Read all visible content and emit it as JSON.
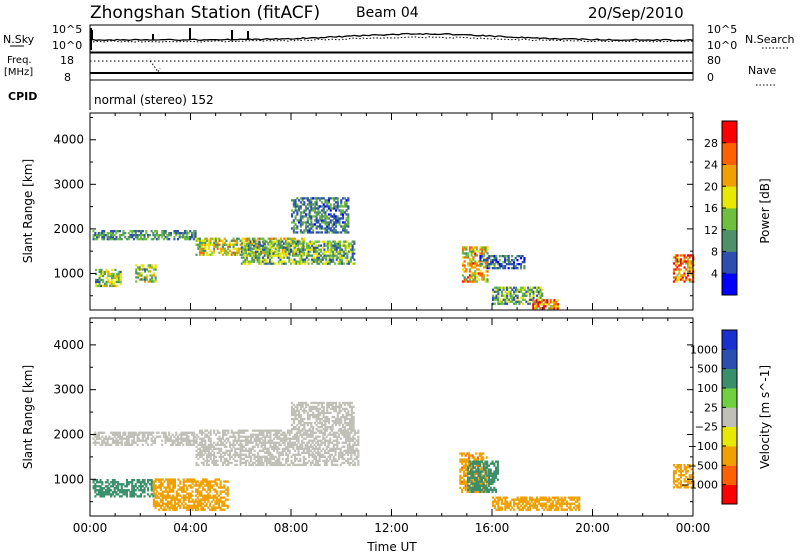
{
  "header": {
    "title": "Zhongshan Station (fitACF)",
    "beam": "Beam 04",
    "date": "20/Sep/2010"
  },
  "strip": {
    "nsky_label": "N.Sky",
    "nsky_ticks": [
      "10^5",
      "10^0"
    ],
    "nsearch_label": "N.Search",
    "nsearch_ticks": [
      "10^5",
      "10^0"
    ],
    "freq_label": "Freq.",
    "freq_unit": "[MHz]",
    "freq_ticks": [
      "18",
      "8"
    ],
    "nave_label": "Nave",
    "nave_ticks": [
      "80",
      "0"
    ],
    "cpid_label": "CPID",
    "cpid_text": "normal (stereo) 152"
  },
  "colors": {
    "power_scale": [
      "#0000ff",
      "#2c4fb0",
      "#4f8f6a",
      "#6fbf3f",
      "#e8e800",
      "#f0a000",
      "#ff6000",
      "#ff0000"
    ],
    "velocity_scale": [
      "#ff0000",
      "#ff6000",
      "#f0a000",
      "#e8e800",
      "#c0c0b8",
      "#6fd040",
      "#3a8f6a",
      "#2a4fb0",
      "#1830d0"
    ]
  },
  "chart_data": [
    {
      "type": "heatmap",
      "panel": "power",
      "xlabel": "",
      "ylabel": "Slant Range [km]",
      "xlim": [
        0,
        24
      ],
      "ylim": [
        180,
        4600
      ],
      "yticks": [
        "1000",
        "2000",
        "3000",
        "4000"
      ],
      "colorbar_label": "Power [dB]",
      "colorbar_ticks": [
        "4",
        "8",
        "12",
        "16",
        "20",
        "24",
        "28"
      ],
      "colorbar_range": [
        0,
        32
      ],
      "echo_regions": [
        {
          "x": [
            0.1,
            4.2
          ],
          "y": [
            1750,
            1950
          ],
          "value": 10
        },
        {
          "x": [
            0.2,
            1.2
          ],
          "y": [
            700,
            1100
          ],
          "value": 14
        },
        {
          "x": [
            1.8,
            2.6
          ],
          "y": [
            800,
            1200
          ],
          "value": 15
        },
        {
          "x": [
            4.2,
            8.5
          ],
          "y": [
            1400,
            1800
          ],
          "value": 17
        },
        {
          "x": [
            6.0,
            10.5
          ],
          "y": [
            1200,
            1700
          ],
          "value": 13
        },
        {
          "x": [
            8.0,
            10.3
          ],
          "y": [
            1900,
            2700
          ],
          "value": 9
        },
        {
          "x": [
            14.8,
            15.8
          ],
          "y": [
            800,
            1600
          ],
          "value": 20
        },
        {
          "x": [
            16.0,
            18.0
          ],
          "y": [
            300,
            700
          ],
          "value": 12
        },
        {
          "x": [
            17.6,
            18.6
          ],
          "y": [
            200,
            400
          ],
          "value": 26
        },
        {
          "x": [
            23.2,
            24.0
          ],
          "y": [
            800,
            1400
          ],
          "value": 24
        },
        {
          "x": [
            15.5,
            17.3
          ],
          "y": [
            1100,
            1400
          ],
          "value": 8
        }
      ]
    },
    {
      "type": "heatmap",
      "panel": "velocity",
      "xlabel": "Time UT",
      "ylabel": "Slant Range [km]",
      "xlim": [
        0,
        24
      ],
      "ylim": [
        180,
        4600
      ],
      "xticks": [
        "00:00",
        "04:00",
        "08:00",
        "12:00",
        "16:00",
        "20:00",
        "00:00"
      ],
      "yticks": [
        "1000",
        "2000",
        "3000",
        "4000"
      ],
      "colorbar_label": "Velocity [m s^-1]",
      "colorbar_ticks": [
        "1000",
        "500",
        "100",
        "25",
        "−25",
        "−100",
        "−500",
        "−1000"
      ],
      "echo_regions": [
        {
          "x": [
            0.1,
            4.2
          ],
          "y": [
            1750,
            2050
          ],
          "value": 0
        },
        {
          "x": [
            4.2,
            10.7
          ],
          "y": [
            1300,
            2100
          ],
          "value": 0
        },
        {
          "x": [
            8.0,
            10.5
          ],
          "y": [
            2100,
            2700
          ],
          "value": 0
        },
        {
          "x": [
            0.1,
            2.5
          ],
          "y": [
            600,
            1000
          ],
          "value": 150
        },
        {
          "x": [
            2.5,
            5.5
          ],
          "y": [
            300,
            1000
          ],
          "value": -300
        },
        {
          "x": [
            14.7,
            15.8
          ],
          "y": [
            700,
            1600
          ],
          "value": -400
        },
        {
          "x": [
            15.0,
            16.2
          ],
          "y": [
            700,
            1400
          ],
          "value": 200
        },
        {
          "x": [
            16.0,
            19.5
          ],
          "y": [
            300,
            600
          ],
          "value": -150
        },
        {
          "x": [
            23.2,
            24.0
          ],
          "y": [
            800,
            1300
          ],
          "value": -300
        }
      ]
    }
  ]
}
